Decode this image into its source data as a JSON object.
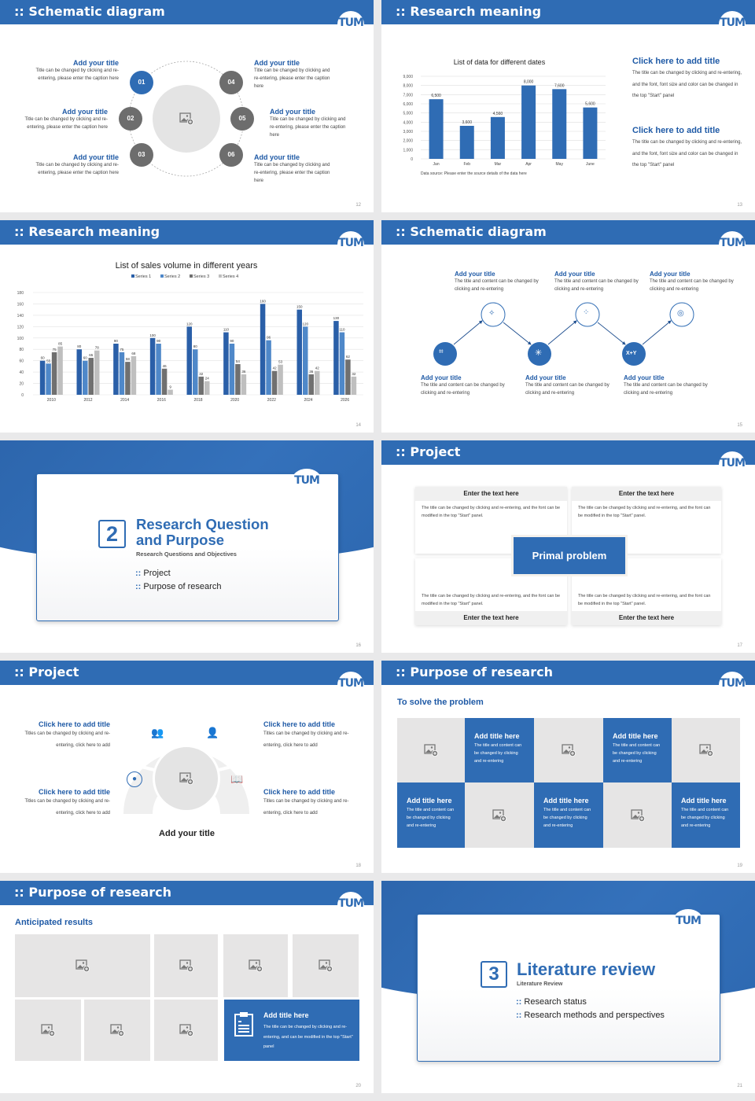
{
  "logo_text": "TUM",
  "colors": {
    "primary": "#2f6cb4",
    "dark_gray": "#6d6d6d",
    "light_gray": "#e6e5e5"
  },
  "s12": {
    "title": "Schematic diagram",
    "page": "12",
    "items": [
      {
        "num": "01",
        "title": "Add your title",
        "text": "Title can be changed by clicking and re-entering, please enter the caption here"
      },
      {
        "num": "02",
        "title": "Add your title",
        "text": "Title can be changed by clicking and re-entering, please enter the caption here"
      },
      {
        "num": "03",
        "title": "Add your title",
        "text": "Title can be changed by clicking and re-entering, please enter the caption here"
      },
      {
        "num": "04",
        "title": "Add your title",
        "text": "Title can be changed by clicking and re-entering, please enter the caption here"
      },
      {
        "num": "05",
        "title": "Add your title",
        "text": "Title can be changed by clicking and re-entering, please enter the caption here"
      },
      {
        "num": "06",
        "title": "Add your title",
        "text": "Title can be changed by clicking and re-entering, please enter the caption here"
      }
    ]
  },
  "s13": {
    "title": "Research meaning",
    "page": "13",
    "source": "Data source: Please enter the source details of the data here",
    "texts": [
      {
        "title": "Click here to add title",
        "text": "The title can be changed by clicking and re-entering, and the font, font size and color can be changed in the top \"Start\" panel"
      },
      {
        "title": "Click here to add title",
        "text": "The title can be changed by clicking and re-entering, and the font, font size and color can be changed in the top \"Start\" panel"
      }
    ]
  },
  "s14": {
    "title": "Research meaning",
    "page": "14"
  },
  "s15": {
    "title": "Schematic diagram",
    "page": "15",
    "items": [
      {
        "title": "Add your title",
        "text": "The title and content can be changed by clicking and re-entering",
        "icon": "network-icon"
      },
      {
        "title": "Add your title",
        "text": "The title and content can be changed by clicking and re-entering",
        "icon": "sparkle-icon"
      },
      {
        "title": "Add your title",
        "text": "The title and content can be changed by clicking and re-entering",
        "icon": "snowflake-icon"
      },
      {
        "title": "Add your title",
        "text": "The title and content can be changed by clicking and re-entering",
        "icon": "nodes-icon"
      },
      {
        "title": "Add your title",
        "text": "The title and content can be changed by clicking and re-entering",
        "icon": "x-y-icon",
        "glyph": "X+Y"
      },
      {
        "title": "Add your title",
        "text": "The title and content can be changed by clicking and re-entering",
        "icon": "target-icon"
      }
    ]
  },
  "s16": {
    "page": "16",
    "num": "2",
    "title1": "Research Question",
    "title2": "and Purpose",
    "subtitle": "Research Questions and Objectives",
    "bullets": [
      "Project",
      "Purpose of research"
    ]
  },
  "s17": {
    "title": "Project",
    "page": "17",
    "center": "Primal problem",
    "boxes": [
      {
        "head": "Enter the text here",
        "text": "The title can be changed by clicking and re-entering, and the font can be modified in the top \"Start\" panel."
      },
      {
        "head": "Enter the text here",
        "text": "The title can be changed by clicking and re-entering, and the font can be modified in the top \"Start\" panel."
      },
      {
        "head": "Enter the text here",
        "text": "The title can be changed by clicking and re-entering, and the font can be modified in the top \"Start\" panel."
      },
      {
        "head": "Enter the text here",
        "text": "The title can be changed by clicking and re-entering, and the font can be modified in the top \"Start\" panel."
      }
    ]
  },
  "s18": {
    "title": "Project",
    "page": "18",
    "center_title": "Add your title",
    "items": [
      {
        "title": "Click here to add title",
        "text": "Titles can be changed by clicking and re-entering, click here to add"
      },
      {
        "title": "Click here to add title",
        "text": "Titles can be changed by clicking and re-entering, click here to add"
      },
      {
        "title": "Click here to add title",
        "text": "Titles can be changed by clicking and re-entering, click here to add"
      },
      {
        "title": "Click here to add title",
        "text": "Titles can be changed by clicking and re-entering, click here to add"
      }
    ]
  },
  "s19": {
    "title": "Purpose of research",
    "page": "19",
    "subtitle": "To solve the problem",
    "cell_title": "Add title here",
    "cell_text": "The title and content can be changed by clicking and re-entering"
  },
  "s20": {
    "title": "Purpose of research",
    "page": "20",
    "subtitle": "Anticipated results",
    "card_title": "Add title here",
    "card_text": "The title can be changed by clicking and re-entering, and can be modified in the top \"Start\" panel"
  },
  "s21": {
    "page": "21",
    "num": "3",
    "title": "Literature review",
    "subtitle": "Literature Review",
    "bullets": [
      "Research status",
      "Research methods and perspectives"
    ]
  },
  "chart_data": [
    {
      "type": "bar",
      "title": "List of data for different dates",
      "categories": [
        "Jan",
        "Feb",
        "Mar",
        "Apr",
        "May",
        "June"
      ],
      "values": [
        6500,
        3600,
        4560,
        8000,
        7600,
        5600
      ],
      "ylim": [
        0,
        9000
      ],
      "ytick_step": 1000,
      "grid": true,
      "color": "#2f6cb4"
    },
    {
      "type": "bar",
      "title": "List of sales volume in different years",
      "legend": "top",
      "categories": [
        "2010",
        "2012",
        "2014",
        "2016",
        "2018",
        "2020",
        "2022",
        "2024",
        "2026"
      ],
      "ylim": [
        0,
        180
      ],
      "ytick_step": 20,
      "grid": true,
      "series": [
        {
          "name": "Series 1",
          "color": "#2a5fa8",
          "values": [
            60,
            80,
            90,
            100,
            120,
            110,
            160,
            150,
            130
          ]
        },
        {
          "name": "Series 2",
          "color": "#4f88c9",
          "values": [
            55,
            60,
            75,
            90,
            80,
            90,
            96,
            120,
            110
          ]
        },
        {
          "name": "Series 3",
          "color": "#707070",
          "values": [
            75,
            65,
            58,
            46,
            32,
            54,
            42,
            36,
            62
          ]
        },
        {
          "name": "Series 4",
          "color": "#bfbfbf",
          "values": [
            85,
            78,
            68,
            9,
            24,
            36,
            53,
            42,
            32
          ]
        }
      ]
    }
  ]
}
